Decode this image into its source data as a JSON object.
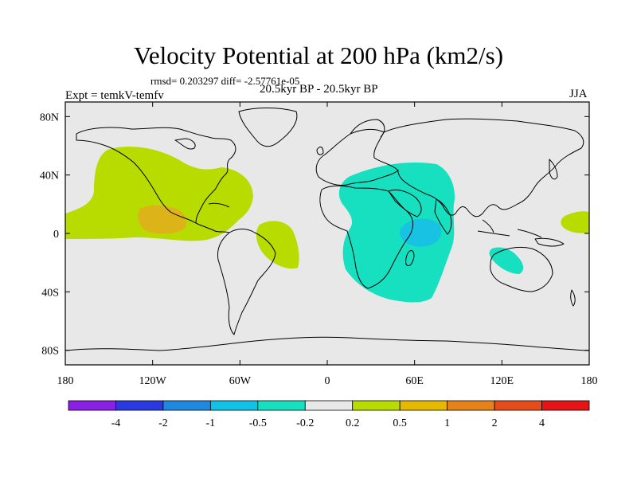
{
  "header": {
    "title": "Velocity Potential at 200 hPa (km2/s)",
    "stats": "rmsd= 0.203297 diff= -2.57761e-05",
    "experiment": "Expt = temkV-temfv",
    "period": "20.5kyr BP - 20.5kyr BP",
    "season": "JJA"
  },
  "axes": {
    "lon_labels": [
      "180",
      "120W",
      "60W",
      "0",
      "60E",
      "120E",
      "180"
    ],
    "lat_labels": [
      "80N",
      "40N",
      "0",
      "40S",
      "80S"
    ],
    "lon_values": [
      -180,
      -120,
      -60,
      0,
      60,
      120,
      180
    ],
    "lat_values": [
      80,
      40,
      0,
      -40,
      -80
    ]
  },
  "legend": {
    "labels": [
      "-4",
      "-2",
      "-1",
      "-0.5",
      "-0.2",
      "0.2",
      "0.5",
      "1",
      "2",
      "4"
    ],
    "colors": [
      "#8a1fe6",
      "#2a3ae0",
      "#1f88e0",
      "#12c2e6",
      "#16e0c0",
      "#e8e8e8",
      "#b8dc00",
      "#e6b800",
      "#e6821a",
      "#e64c1a",
      "#e61414"
    ]
  },
  "map_colors": {
    "ocean": "#e8e8e8",
    "positive_0_2": "#b8dc00",
    "positive_0_5": "#dcb41a",
    "negative_0_2": "#16e0c0",
    "negative_0_5": "#18c2e2"
  }
}
